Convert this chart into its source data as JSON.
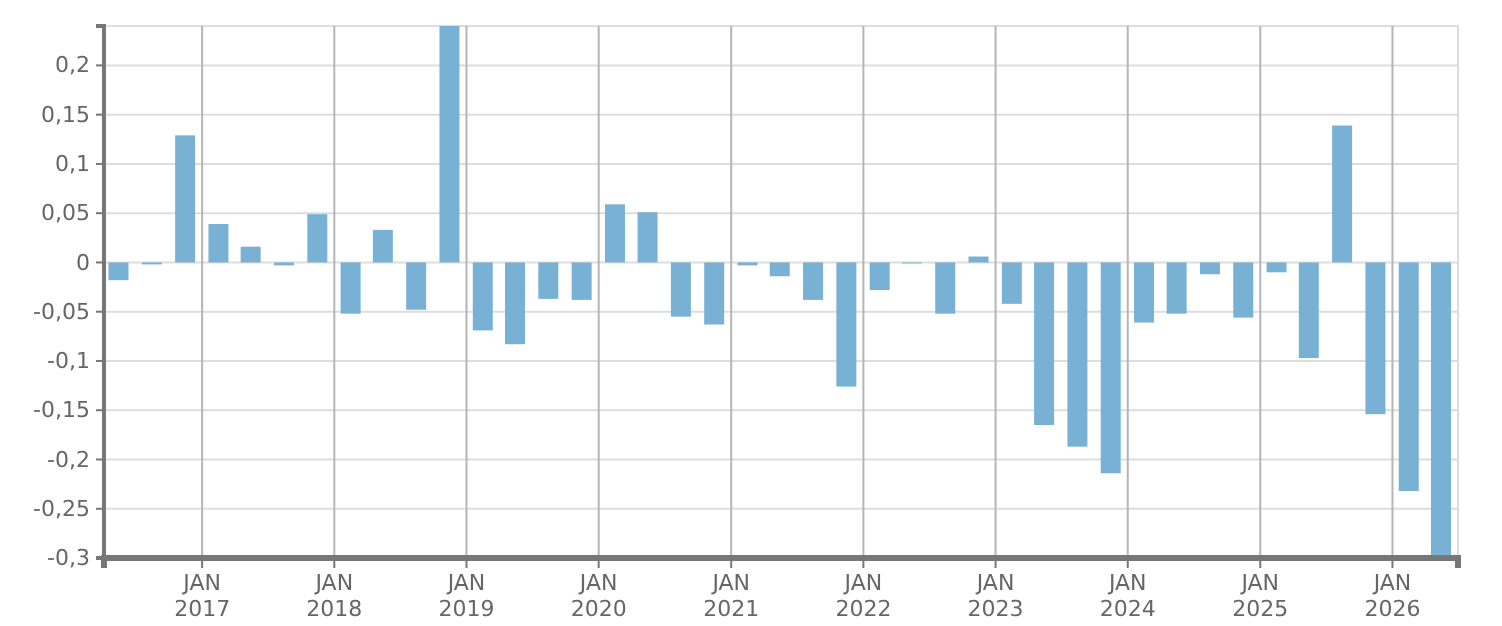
{
  "chart_data": {
    "type": "bar",
    "color": "#78b1d4",
    "grid": true,
    "x": [
      "2016-05-15",
      "2016-08-15",
      "2016-11-15",
      "2017-02-15",
      "2017-05-15",
      "2017-08-15",
      "2017-11-15",
      "2018-02-15",
      "2018-05-15",
      "2018-08-15",
      "2018-11-15",
      "2019-02-15",
      "2019-05-15",
      "2019-08-15",
      "2019-11-15",
      "2020-02-15",
      "2020-05-15",
      "2020-08-15",
      "2020-11-15",
      "2021-02-15",
      "2021-05-15",
      "2021-08-15",
      "2021-11-15",
      "2022-02-15",
      "2022-05-15",
      "2022-08-15",
      "2022-11-15",
      "2023-02-15",
      "2023-05-15",
      "2023-08-15",
      "2023-11-15",
      "2024-02-15",
      "2024-05-15",
      "2024-08-15",
      "2024-11-15",
      "2025-02-15",
      "2025-05-15",
      "2025-08-15",
      "2025-11-15",
      "2026-02-15",
      "2026-05-15"
    ],
    "values": [
      -0.018,
      -0.002,
      0.129,
      0.039,
      0.016,
      -0.003,
      0.049,
      -0.052,
      0.033,
      -0.048,
      0.24,
      -0.069,
      -0.083,
      -0.037,
      -0.038,
      0.059,
      0.051,
      -0.055,
      -0.063,
      -0.003,
      -0.014,
      -0.038,
      -0.126,
      -0.028,
      -0.001,
      -0.052,
      0.006,
      -0.042,
      -0.165,
      -0.187,
      -0.214,
      -0.061,
      -0.052,
      -0.012,
      -0.056,
      -0.01,
      -0.097,
      0.139,
      -0.154,
      -0.232,
      -0.3
    ],
    "xlim": [
      "2016-04-05",
      "2026-07-01"
    ],
    "xticks": [
      {
        "value": "2017-01-01",
        "label": "JAN 2017"
      },
      {
        "value": "2018-01-01",
        "label": "JAN 2018"
      },
      {
        "value": "2019-01-01",
        "label": "JAN 2019"
      },
      {
        "value": "2020-01-01",
        "label": "JAN 2020"
      },
      {
        "value": "2021-01-01",
        "label": "JAN 2021"
      },
      {
        "value": "2022-01-01",
        "label": "JAN 2022"
      },
      {
        "value": "2023-01-01",
        "label": "JAN 2023"
      },
      {
        "value": "2024-01-01",
        "label": "JAN 2024"
      },
      {
        "value": "2025-01-01",
        "label": "JAN 2025"
      },
      {
        "value": "2026-01-01",
        "label": "JAN 2026"
      }
    ],
    "ylim": [
      -0.3,
      0.24
    ],
    "yticks": [
      {
        "value": -0.3,
        "label": "-0,3"
      },
      {
        "value": -0.25,
        "label": "-0,25"
      },
      {
        "value": -0.2,
        "label": "-0,2"
      },
      {
        "value": -0.15,
        "label": "-0,15"
      },
      {
        "value": -0.1,
        "label": "-0,1"
      },
      {
        "value": -0.05,
        "label": "-0,05"
      },
      {
        "value": 0,
        "label": "0"
      },
      {
        "value": 0.05,
        "label": "0,05"
      },
      {
        "value": 0.1,
        "label": "0,1"
      },
      {
        "value": 0.15,
        "label": "0,15"
      },
      {
        "value": 0.2,
        "label": "0,2"
      }
    ]
  }
}
